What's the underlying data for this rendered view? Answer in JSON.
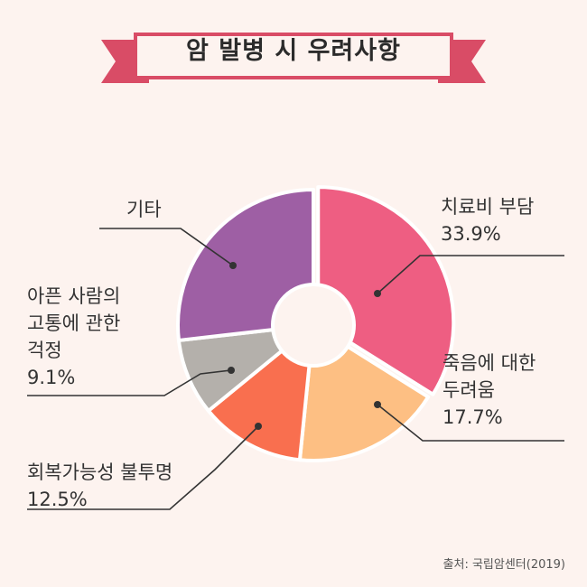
{
  "title": "암 발병 시 우려사항",
  "source": "출처: 국립암센터(2019)",
  "colors": {
    "accent": "#e0506e",
    "background": "#fdf3ef"
  },
  "chart_data": {
    "type": "pie",
    "donut": true,
    "title": "암 발병 시 우려사항",
    "legend": "none",
    "slices": [
      {
        "label": "치료비 부담",
        "value": 33.9,
        "value_label": "33.9%",
        "color": "#ee5e82",
        "exploded": true
      },
      {
        "label": "죽음에 대한 두려움",
        "value": 17.7,
        "value_label": "17.7%",
        "color": "#fdbf83"
      },
      {
        "label": "회복가능성 불투명",
        "value": 12.5,
        "value_label": "12.5%",
        "color": "#f96f4f"
      },
      {
        "label": "아픈 사람의 고통에 관한 걱정",
        "value": 9.1,
        "value_label": "9.1%",
        "color": "#b4b0ab"
      },
      {
        "label": "기타",
        "value": 26.8,
        "value_label": "",
        "color": "#9e5fa4"
      }
    ],
    "labels_display": [
      {
        "lines": [
          "치료비 부담"
        ],
        "pct": "33.9%"
      },
      {
        "lines": [
          "죽음에 대한",
          "두려움"
        ],
        "pct": "17.7%"
      },
      {
        "lines": [
          "회복가능성 불투명"
        ],
        "pct": "12.5%"
      },
      {
        "lines": [
          "아픈 사람의",
          "고통에 관한",
          "걱정"
        ],
        "pct": "9.1%"
      },
      {
        "lines": [
          "기타"
        ],
        "pct": ""
      }
    ]
  }
}
